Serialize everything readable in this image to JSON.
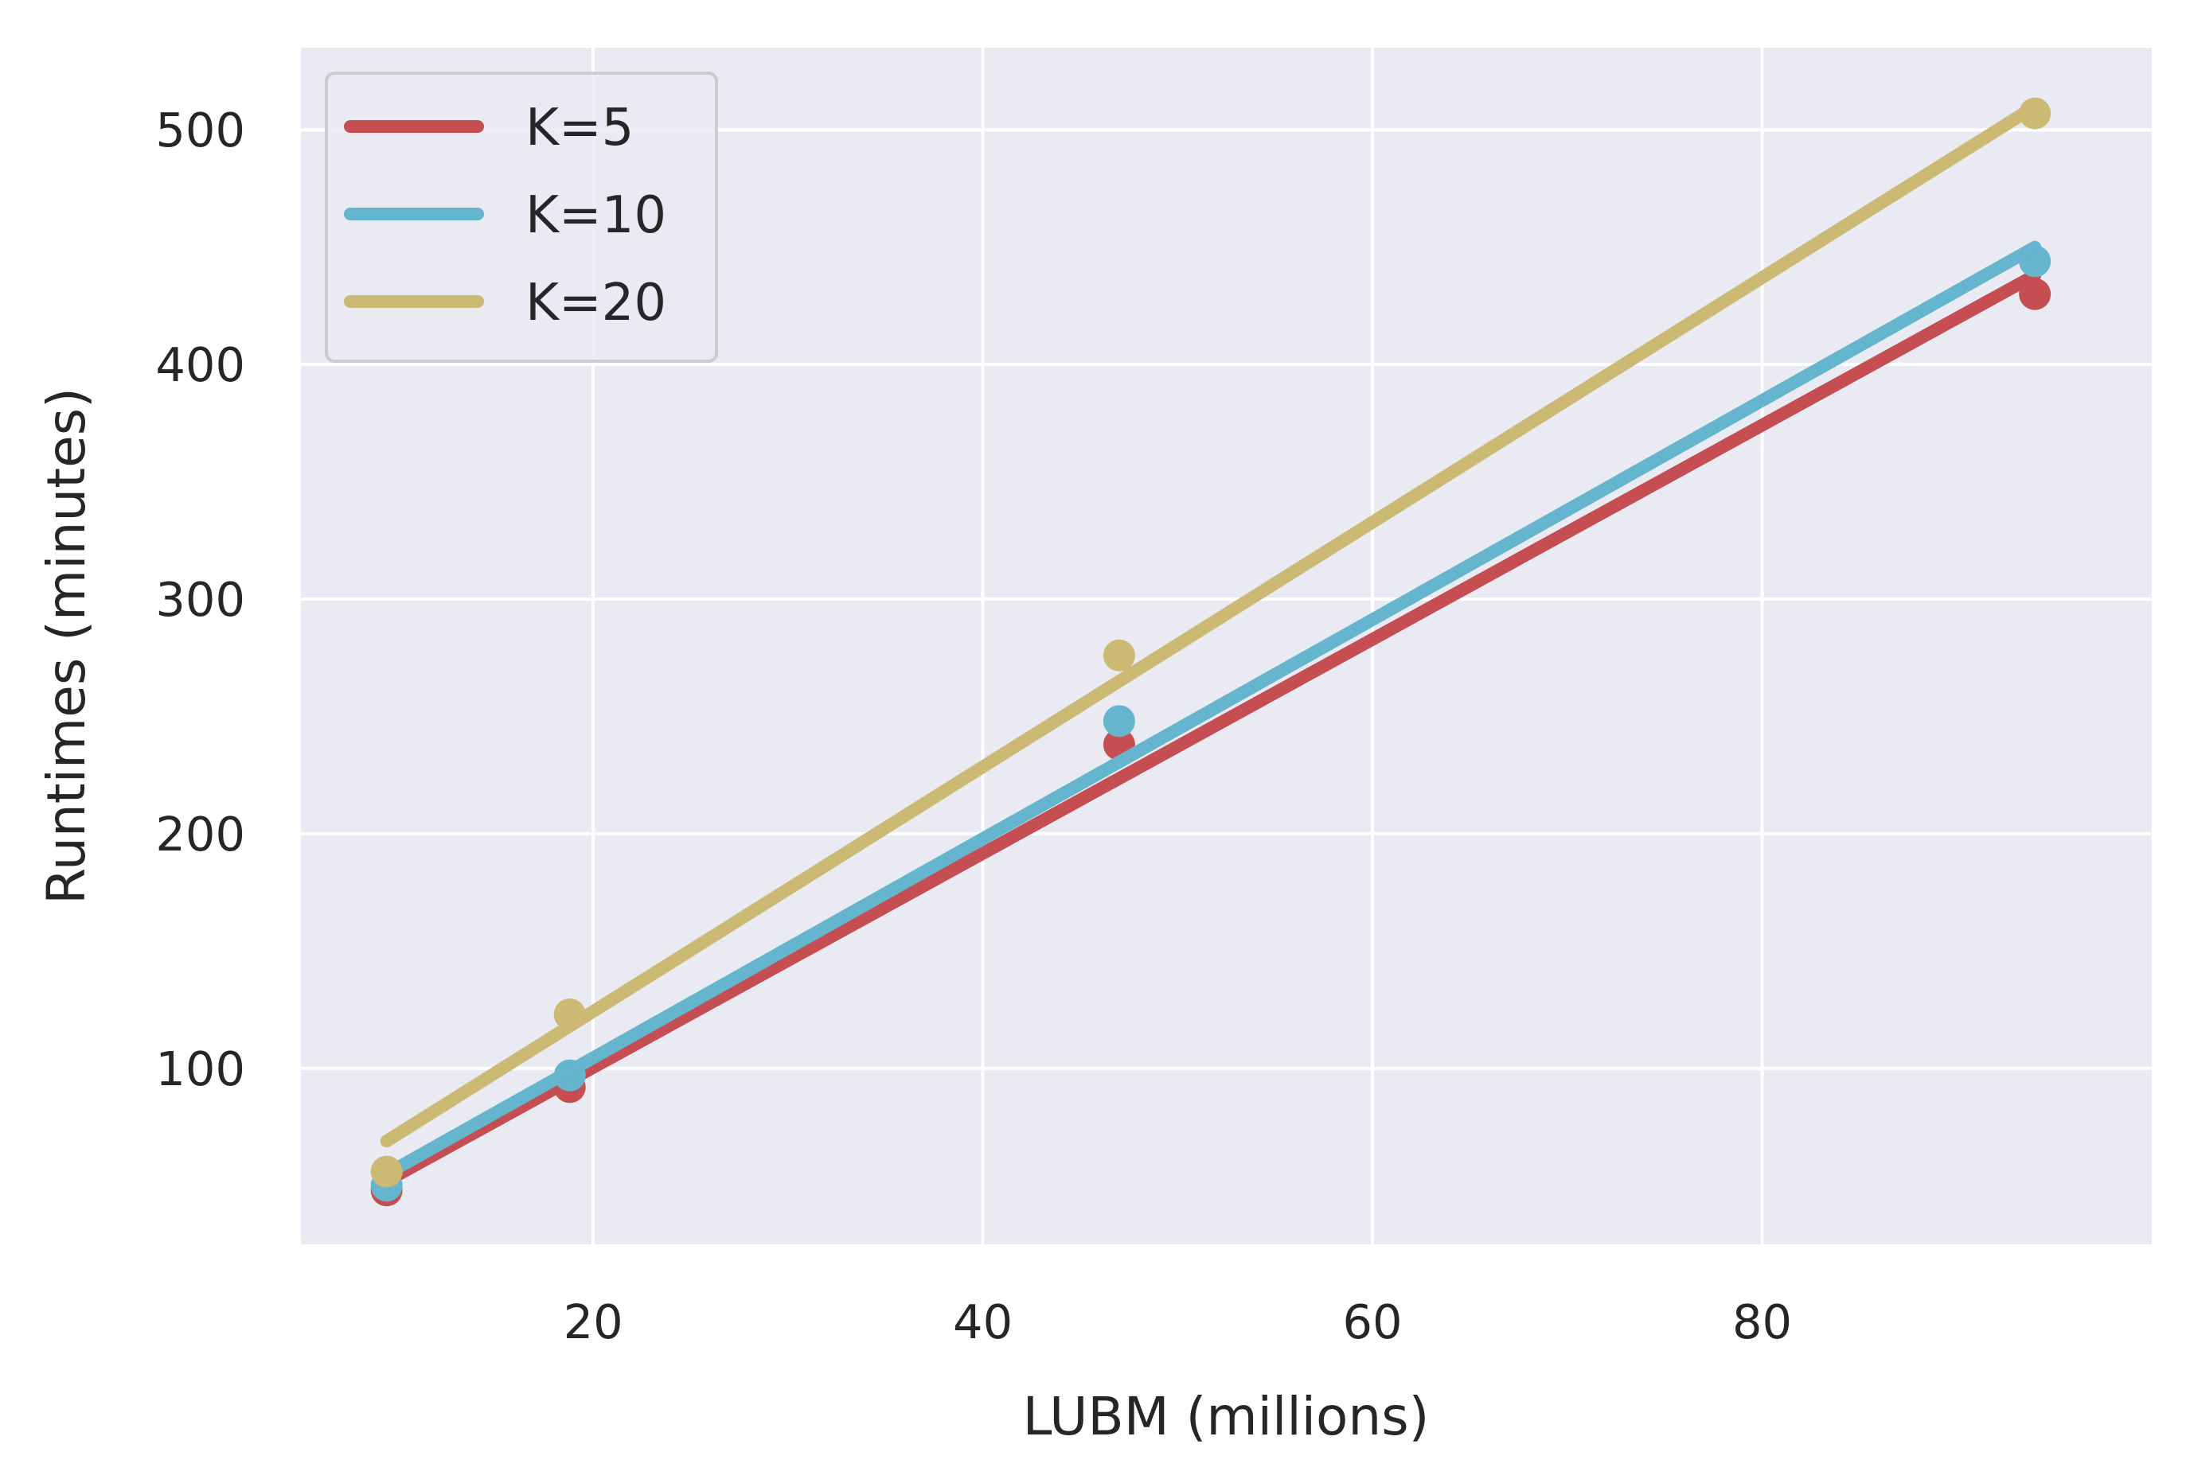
{
  "chart_data": {
    "type": "line",
    "title": "",
    "xlabel": "LUBM (millions)",
    "ylabel": "Runtimes (minutes)",
    "xlim": [
      5,
      100
    ],
    "ylim": [
      25,
      535
    ],
    "xticks": [
      20,
      40,
      60,
      80
    ],
    "yticks": [
      100,
      200,
      300,
      400,
      500
    ],
    "grid": true,
    "legend_position": "top-left",
    "background_color": "#eaeaf2",
    "grid_color": "#ffffff",
    "x": [
      9.4,
      18.8,
      47,
      94
    ],
    "series": [
      {
        "name": "K=5",
        "color": "#c44e52",
        "points": [
          48,
          92,
          238,
          430
        ],
        "fit": [
          [
            9.4,
            52
          ],
          [
            94,
            438
          ]
        ]
      },
      {
        "name": "K=10",
        "color": "#64b5cd",
        "points": [
          50,
          97,
          248,
          444
        ],
        "fit": [
          [
            9.4,
            55
          ],
          [
            94,
            450
          ]
        ]
      },
      {
        "name": "K=20",
        "color": "#ccb974",
        "points": [
          56,
          123,
          276,
          507
        ],
        "fit": [
          [
            9.4,
            69
          ],
          [
            94,
            510
          ]
        ]
      }
    ]
  }
}
